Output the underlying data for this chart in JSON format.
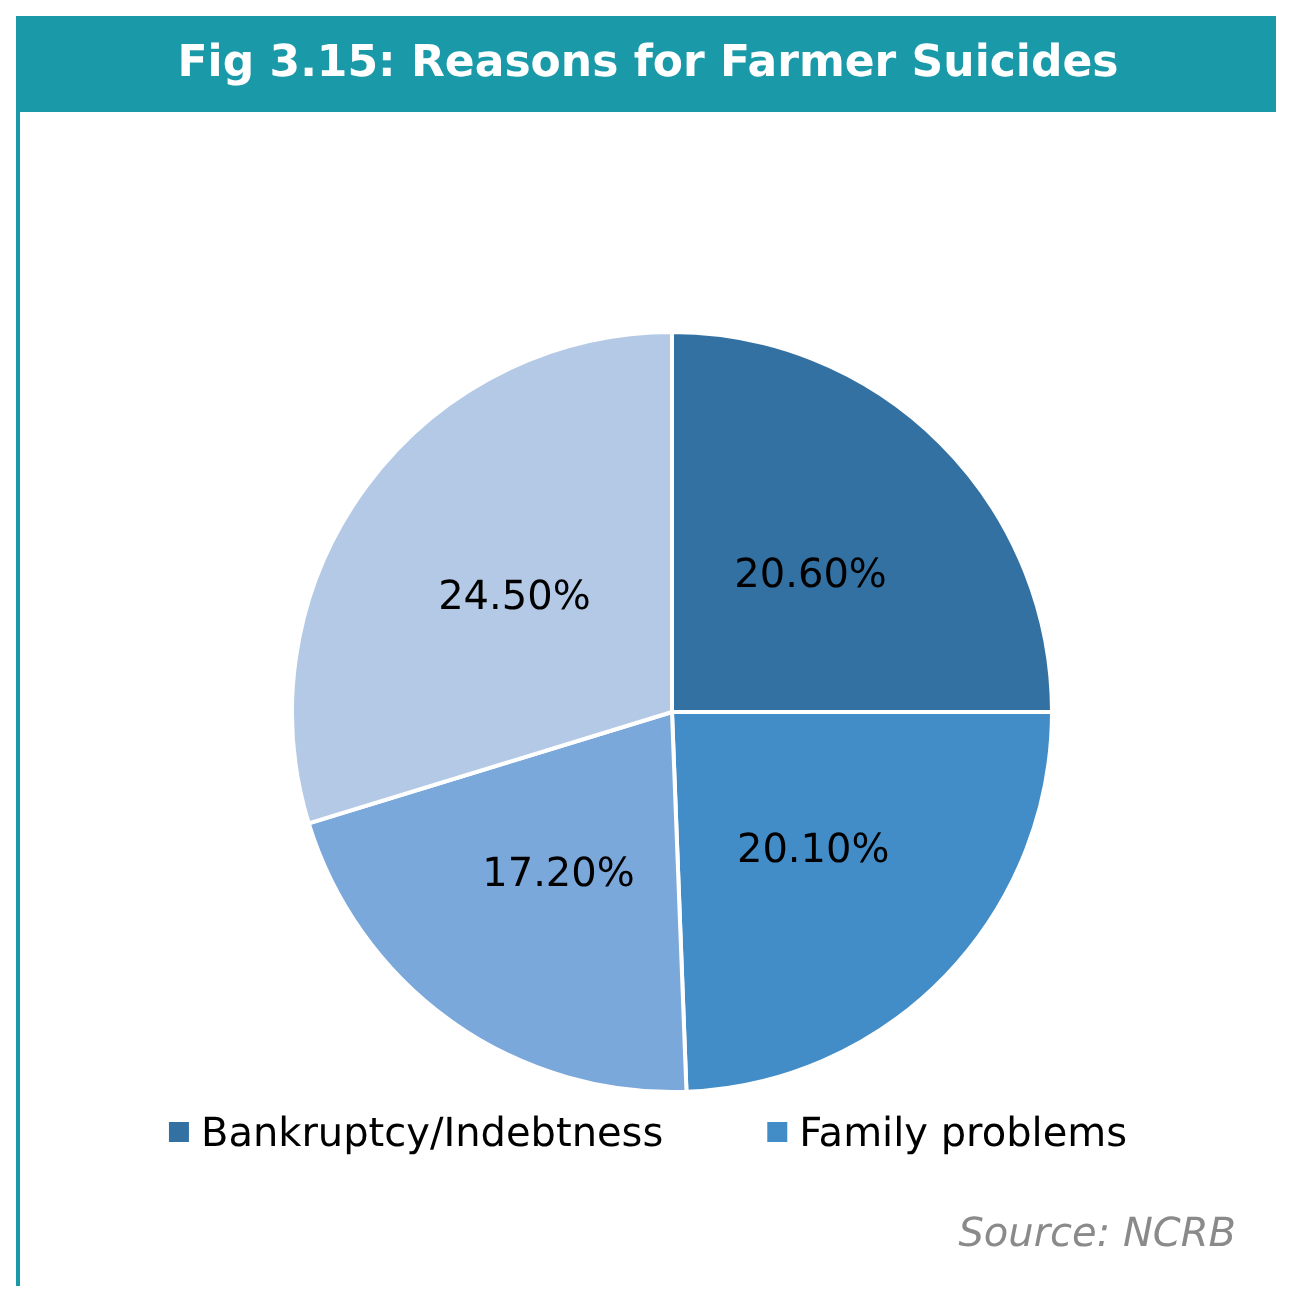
{
  "chart_data": {
    "type": "pie",
    "title": "Fig 3.15: Reasons for Farmer Suicides",
    "categories": [
      "Bankruptcy/Indebtness",
      "Family problems",
      null,
      null
    ],
    "values": [
      20.6,
      20.1,
      17.2,
      24.5
    ],
    "value_labels": [
      "20.60%",
      "20.10%",
      "17.20%",
      "24.50%"
    ],
    "colors": [
      "#3371a3",
      "#428dc8",
      "#7ba8da",
      "#b4c9e6"
    ],
    "legend": "bottom",
    "annotations": [
      "Source: NCRB"
    ]
  }
}
